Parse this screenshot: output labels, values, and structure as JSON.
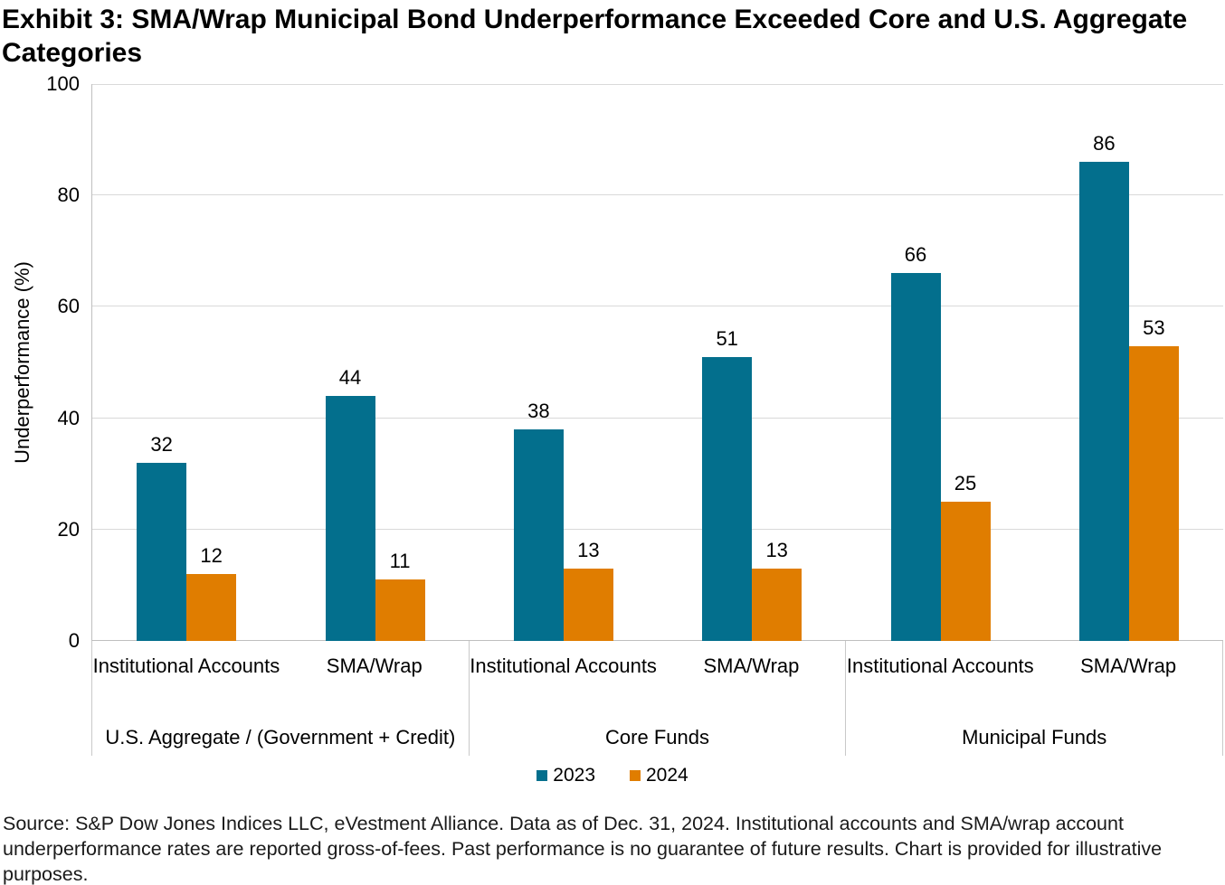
{
  "title": "Exhibit 3: SMA/Wrap Municipal Bond Underperformance Exceeded Core and U.S. Aggregate Categories",
  "source_note": "Source: S&P Dow Jones Indices LLC, eVestment Alliance. Data as of Dec. 31, 2024. Institutional accounts and SMA/wrap account underperformance rates are reported gross-of-fees. Past performance is no guarantee of future results. Chart is provided for illustrative purposes.",
  "colors": {
    "series_2023": "#036F8D",
    "series_2024": "#E07D00",
    "gridline": "#D9D9D9",
    "axis_line": "#BFBFBF"
  },
  "chart_data": {
    "type": "bar",
    "title": "Exhibit 3: SMA/Wrap Municipal Bond Underperformance Exceeded Core and U.S. Aggregate Categories",
    "xlabel": "",
    "ylabel": "Underperformance (%)",
    "ylim": [
      0,
      100
    ],
    "yticks": [
      0,
      20,
      40,
      60,
      80,
      100
    ],
    "grid": true,
    "legend_position": "bottom",
    "groups": [
      {
        "label": "U.S. Aggregate / (Government + Credit)",
        "categories": [
          "Institutional Accounts",
          "SMA/Wrap"
        ]
      },
      {
        "label": "Core Funds",
        "categories": [
          "Institutional Accounts",
          "SMA/Wrap"
        ]
      },
      {
        "label": "Municipal Funds",
        "categories": [
          "Institutional Accounts",
          "SMA/Wrap"
        ]
      }
    ],
    "series": [
      {
        "name": "2023",
        "color": "#036F8D",
        "values": [
          32,
          44,
          38,
          51,
          66,
          86
        ]
      },
      {
        "name": "2024",
        "color": "#E07D00",
        "values": [
          12,
          11,
          13,
          13,
          25,
          53
        ]
      }
    ]
  }
}
